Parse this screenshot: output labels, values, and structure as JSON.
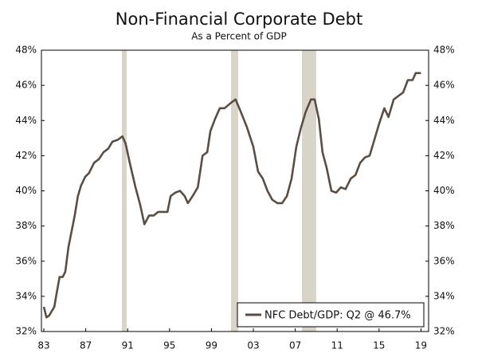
{
  "chart_data": {
    "type": "line",
    "title": "Non-Financial Corporate Debt",
    "subtitle": "As a Percent of GDP",
    "x": [
      1983.0,
      1983.25,
      1983.5,
      1984.0,
      1984.2,
      1984.5,
      1984.8,
      1985.05,
      1985.35,
      1985.65,
      1985.95,
      1986.25,
      1986.55,
      1986.95,
      1987.3,
      1987.8,
      1988.25,
      1988.7,
      1989.15,
      1989.55,
      1990.05,
      1990.5,
      1990.8,
      1991.2,
      1991.75,
      1992.2,
      1992.6,
      1993.05,
      1993.5,
      1993.9,
      1994.35,
      1994.8,
      1995.1,
      1995.55,
      1996.0,
      1996.45,
      1996.75,
      1997.2,
      1997.7,
      1998.15,
      1998.6,
      1998.9,
      1999.35,
      1999.8,
      2000.25,
      2000.85,
      2001.3,
      2001.8,
      2002.4,
      2003.0,
      2003.45,
      2003.9,
      2004.35,
      2004.8,
      2005.3,
      2005.75,
      2006.2,
      2006.65,
      2007.1,
      2007.55,
      2008.0,
      2008.5,
      2008.85,
      2009.25,
      2009.6,
      2010.0,
      2010.45,
      2010.9,
      2011.35,
      2011.8,
      2012.3,
      2012.75,
      2013.2,
      2013.65,
      2014.1,
      2014.55,
      2015.0,
      2015.5,
      2015.9,
      2016.4,
      2016.85,
      2017.3,
      2017.75,
      2018.2,
      2018.5,
      2019.0
    ],
    "series": [
      {
        "name": "NFC Debt/GDP: Q2 @ 46.7%",
        "color": "#5a4e44",
        "values": [
          33.4,
          32.8,
          32.9,
          33.4,
          34.1,
          35.1,
          35.1,
          35.4,
          36.8,
          37.7,
          38.6,
          39.7,
          40.3,
          40.8,
          41.0,
          41.6,
          41.8,
          42.2,
          42.4,
          42.8,
          42.9,
          43.1,
          42.7,
          41.6,
          40.2,
          39.2,
          38.1,
          38.6,
          38.6,
          38.8,
          38.8,
          38.8,
          39.7,
          39.9,
          40.0,
          39.7,
          39.3,
          39.7,
          40.2,
          42.0,
          42.2,
          43.4,
          44.1,
          44.7,
          44.7,
          45.0,
          45.2,
          44.5,
          43.6,
          42.5,
          41.1,
          40.7,
          40.0,
          39.5,
          39.3,
          39.3,
          39.7,
          40.7,
          42.5,
          43.6,
          44.5,
          45.2,
          45.2,
          44.1,
          42.2,
          41.3,
          40.0,
          39.9,
          40.2,
          40.1,
          40.7,
          40.9,
          41.6,
          41.9,
          42.0,
          42.9,
          43.8,
          44.7,
          44.2,
          45.2,
          45.4,
          45.6,
          46.3,
          46.3,
          46.7,
          46.7
        ]
      }
    ],
    "recessions": [
      [
        1990.45,
        1990.9
      ],
      [
        2000.87,
        2001.55
      ],
      [
        2007.64,
        2009.0
      ]
    ],
    "recession_color": "#d9d4c9",
    "xlim": [
      1982.77,
      2019.73
    ],
    "xticks": [
      {
        "value": 1983,
        "label": "83"
      },
      {
        "value": 1987,
        "label": "87"
      },
      {
        "value": 1991,
        "label": "91"
      },
      {
        "value": 1995,
        "label": "95"
      },
      {
        "value": 1999,
        "label": "99"
      },
      {
        "value": 2003,
        "label": "03"
      },
      {
        "value": 2007,
        "label": "07"
      },
      {
        "value": 2011,
        "label": "11"
      },
      {
        "value": 2015,
        "label": "15"
      },
      {
        "value": 2019,
        "label": "19"
      }
    ],
    "ylim": [
      32,
      48
    ],
    "yticks": [
      {
        "value": 32,
        "label": "32%"
      },
      {
        "value": 34,
        "label": "34%"
      },
      {
        "value": 36,
        "label": "36%"
      },
      {
        "value": 38,
        "label": "38%"
      },
      {
        "value": 40,
        "label": "40%"
      },
      {
        "value": 42,
        "label": "42%"
      },
      {
        "value": 44,
        "label": "44%"
      },
      {
        "value": 46,
        "label": "46%"
      },
      {
        "value": 48,
        "label": "48%"
      }
    ],
    "y2lim": [
      32,
      48
    ],
    "y2ticks": [
      {
        "value": 32,
        "label": "32%"
      },
      {
        "value": 34,
        "label": "34%"
      },
      {
        "value": 36,
        "label": "36%"
      },
      {
        "value": 38,
        "label": "38%"
      },
      {
        "value": 40,
        "label": "40%"
      },
      {
        "value": 42,
        "label": "42%"
      },
      {
        "value": 44,
        "label": "44%"
      },
      {
        "value": 46,
        "label": "46%"
      },
      {
        "value": 48,
        "label": "48%"
      }
    ],
    "legend": "lower right"
  }
}
